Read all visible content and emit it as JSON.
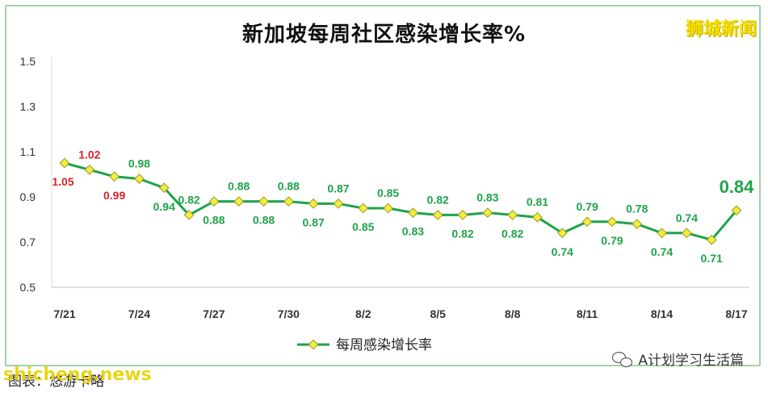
{
  "header": {
    "title": "新加坡每周社区感染增长率%",
    "watermark": "狮城新闻"
  },
  "footer": {
    "source": "图表：悠游卡略",
    "site": "shicheng.news",
    "account": "A计划学习生活篇"
  },
  "icons": {
    "account_icon": "wechat-icon"
  },
  "chart_data": {
    "type": "line",
    "title": "新加坡每周社区感染增长率%",
    "x": [
      "7/21",
      "7/22",
      "7/23",
      "7/24",
      "7/25",
      "7/26",
      "7/27",
      "7/28",
      "7/29",
      "7/30",
      "7/31",
      "8/1",
      "8/2",
      "8/3",
      "8/4",
      "8/5",
      "8/6",
      "8/7",
      "8/8",
      "8/9",
      "8/10",
      "8/11",
      "8/12",
      "8/13",
      "8/14",
      "8/15",
      "8/16",
      "8/17"
    ],
    "x_tick_labels": [
      "7/21",
      "7/24",
      "7/27",
      "7/30",
      "8/2",
      "8/5",
      "8/8",
      "8/11",
      "8/14",
      "8/17"
    ],
    "y_tick_labels": [
      "0.5",
      "0.7",
      "0.9",
      "1.1",
      "1.3",
      "1.5"
    ],
    "ylim": [
      0.5,
      1.5
    ],
    "grid": false,
    "legend": "bottom",
    "series": [
      {
        "name": "每周感染增长率",
        "color": "#1fa34a",
        "marker_color": "#f1ee3c",
        "values": [
          1.05,
          1.02,
          0.99,
          0.98,
          0.94,
          0.82,
          0.88,
          0.88,
          0.88,
          0.88,
          0.87,
          0.87,
          0.85,
          0.85,
          0.83,
          0.82,
          0.82,
          0.83,
          0.82,
          0.81,
          0.74,
          0.79,
          0.79,
          0.78,
          0.74,
          0.74,
          0.71,
          0.84
        ],
        "labels": [
          "1.05",
          "1.02",
          "0.99",
          "0.98",
          "0.94",
          "0.82",
          "0.88",
          "0.88",
          "0.88",
          "0.88",
          "0.87",
          "0.87",
          "0.85",
          "0.85",
          "0.83",
          "0.82",
          "0.82",
          "0.83",
          "0.82",
          "0.81",
          "0.74",
          "0.79",
          "0.79",
          "0.78",
          "0.74",
          "0.74",
          "0.71",
          "0.84"
        ]
      }
    ],
    "label_colors": {
      "high": "#d6242a",
      "normal": "#1fa34a"
    }
  }
}
